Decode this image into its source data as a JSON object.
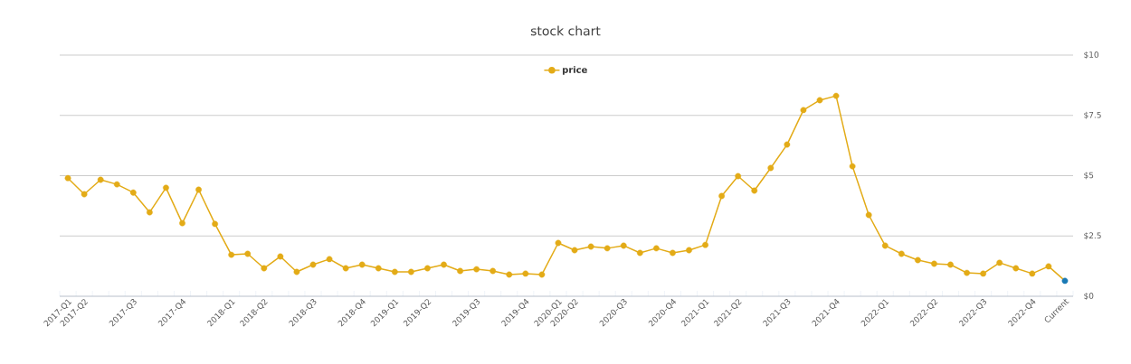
{
  "chart_data": {
    "type": "line",
    "title": "stock chart",
    "categories": [
      "2017-Q1",
      "2017-Q2",
      null,
      null,
      "2017-Q3",
      null,
      null,
      "2017-Q4",
      null,
      null,
      "2018-Q1",
      null,
      "2018-Q2",
      null,
      null,
      "2018-Q3",
      null,
      null,
      "2018-Q4",
      null,
      "2019-Q1",
      null,
      "2019-Q2",
      null,
      null,
      "2019-Q3",
      null,
      null,
      "2019-Q4",
      null,
      "2020-Q1",
      "2020-Q2",
      null,
      null,
      "2020-Q3",
      null,
      null,
      "2020-Q4",
      null,
      "2021-Q1",
      null,
      "2021-Q2",
      null,
      null,
      "2021-Q3",
      null,
      null,
      "2021-Q4",
      null,
      null,
      "2022-Q1",
      null,
      null,
      "2022-Q2",
      null,
      null,
      "2022-Q3",
      null,
      null,
      "2022-Q4",
      null,
      "Current"
    ],
    "series": [
      {
        "name": "price",
        "color": "#e3ab17",
        "colors": [
          "#e3ab17",
          "#e3ab17",
          "#e3ab17",
          "#e3ab17",
          "#e3ab17",
          "#e3ab17",
          "#e3ab17",
          "#e3ab17",
          "#e3ab17",
          "#e3ab17",
          "#e3ab17",
          "#e3ab17",
          "#e3ab17",
          "#e3ab17",
          "#e3ab17",
          "#e3ab17",
          "#e3ab17",
          "#e3ab17",
          "#e3ab17",
          "#e3ab17",
          "#e3ab17",
          "#e3ab17",
          "#e3ab17",
          "#e3ab17",
          "#e3ab17",
          "#e3ab17",
          "#e3ab17",
          "#e3ab17",
          "#e3ab17",
          "#e3ab17",
          "#e3ab17",
          "#e3ab17",
          "#e3ab17",
          "#e3ab17",
          "#e3ab17",
          "#e3ab17",
          "#e3ab17",
          "#e3ab17",
          "#e3ab17",
          "#e3ab17",
          "#e3ab17",
          "#e3ab17",
          "#e3ab17",
          "#e3ab17",
          "#e3ab17",
          "#e3ab17",
          "#e3ab17",
          "#e3ab17",
          "#e3ab17",
          "#e3ab17",
          "#e3ab17",
          "#e3ab17",
          "#e3ab17",
          "#e3ab17",
          "#e3ab17",
          "#e3ab17",
          "#e3ab17",
          "#e3ab17",
          "#e3ab17",
          "#e3ab17",
          "#e3ab17",
          "#1a7ab5"
        ],
        "values": [
          4.9,
          4.23,
          4.83,
          4.64,
          4.3,
          3.48,
          4.5,
          3.03,
          4.42,
          3.0,
          1.72,
          1.76,
          1.16,
          1.65,
          1.01,
          1.31,
          1.54,
          1.16,
          1.31,
          1.16,
          1.01,
          1.01,
          1.16,
          1.31,
          1.05,
          1.12,
          1.05,
          0.9,
          0.94,
          0.9,
          2.21,
          1.91,
          2.06,
          1.99,
          2.1,
          1.8,
          1.99,
          1.8,
          1.91,
          2.13,
          4.16,
          4.98,
          4.38,
          5.32,
          6.29,
          7.72,
          8.13,
          8.31,
          5.39,
          3.37,
          2.1,
          1.76,
          1.5,
          1.35,
          1.31,
          0.97,
          0.94,
          1.39,
          1.16,
          0.94,
          1.24,
          0.64
        ]
      }
    ],
    "ylim": [
      0,
      10
    ],
    "yticks": [
      {
        "value": 0,
        "label": "$0"
      },
      {
        "value": 2.5,
        "label": "$2.5"
      },
      {
        "value": 5,
        "label": "$5"
      },
      {
        "value": 7.5,
        "label": "$7.5"
      },
      {
        "value": 10,
        "label": "$10"
      }
    ],
    "grid": "y",
    "legend": "top",
    "marker": "circle"
  }
}
